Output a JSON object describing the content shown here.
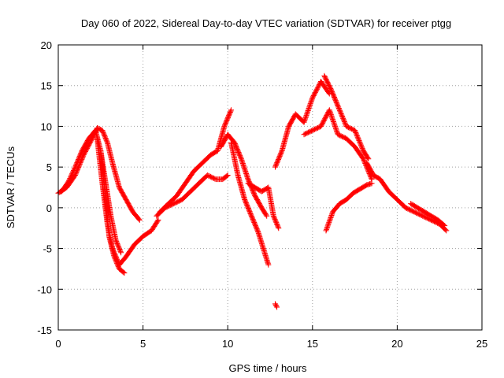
{
  "chart_data": {
    "type": "scatter",
    "title": "Day 060 of 2022, Sidereal Day-to-day VTEC variation (SDTVAR) for receiver ptgg",
    "xlabel": "GPS time / hours",
    "ylabel": "SDTVAR / TECUs",
    "xlim": [
      0,
      25
    ],
    "ylim": [
      -15,
      20
    ],
    "xticks": [
      0,
      5,
      10,
      15,
      20,
      25
    ],
    "yticks": [
      -15,
      -10,
      -5,
      0,
      5,
      10,
      15,
      20
    ],
    "xtick_labels": [
      "0",
      "5",
      "10",
      "15",
      "20",
      "25"
    ],
    "ytick_labels": [
      "-15",
      "-10",
      "-5",
      "0",
      "5",
      "10",
      "15",
      "20"
    ],
    "grid": true,
    "marker": "+",
    "color": "#ff0000",
    "series": [
      {
        "name": "s1",
        "x": [
          0.0,
          0.5,
          1.0,
          1.5,
          2.0,
          2.3,
          2.6,
          2.9,
          3.2,
          3.6,
          4.0,
          4.4,
          4.8
        ],
        "y": [
          1.8,
          2.5,
          4.0,
          6.5,
          8.5,
          9.8,
          9.5,
          8.0,
          5.5,
          2.5,
          1.0,
          -0.5,
          -1.5
        ]
      },
      {
        "name": "s2",
        "x": [
          0.2,
          0.6,
          1.0,
          1.4,
          1.8,
          2.2,
          2.5,
          2.8,
          3.1,
          3.4,
          3.7
        ],
        "y": [
          2.0,
          3.2,
          5.0,
          7.0,
          8.5,
          9.5,
          7.0,
          3.0,
          -1.0,
          -4.0,
          -5.5
        ]
      },
      {
        "name": "s3",
        "x": [
          2.3,
          2.6,
          2.9,
          3.2,
          3.6,
          4.0,
          4.5,
          5.0,
          5.5,
          5.9
        ],
        "y": [
          8.5,
          3.0,
          -2.0,
          -5.0,
          -7.0,
          -6.0,
          -4.5,
          -3.5,
          -2.8,
          -1.5
        ]
      },
      {
        "name": "s4",
        "x": [
          2.5,
          2.8,
          3.0,
          3.3,
          3.6,
          3.9
        ],
        "y": [
          7.0,
          1.0,
          -3.5,
          -6.0,
          -7.5,
          -8.0
        ]
      },
      {
        "name": "s5",
        "x": [
          5.8,
          6.3,
          6.8,
          7.3,
          7.8,
          8.3,
          8.8,
          9.3,
          9.7,
          10.0
        ],
        "y": [
          -1.0,
          0.0,
          0.5,
          1.0,
          2.0,
          3.0,
          4.0,
          3.5,
          3.5,
          4.0
        ]
      },
      {
        "name": "s6",
        "x": [
          6.0,
          6.5,
          7.0,
          7.5,
          8.0,
          8.5,
          9.0,
          9.4,
          9.8,
          10.2
        ],
        "y": [
          -0.5,
          0.5,
          1.5,
          3.0,
          4.5,
          5.5,
          6.5,
          7.0,
          10.0,
          12.0
        ]
      },
      {
        "name": "s7",
        "x": [
          9.6,
          10.0,
          10.4,
          10.8,
          11.2,
          11.6,
          12.0,
          12.3
        ],
        "y": [
          7.5,
          9.0,
          8.0,
          6.0,
          3.5,
          1.5,
          0.0,
          -1.0
        ]
      },
      {
        "name": "s8",
        "x": [
          10.2,
          10.6,
          11.0,
          11.4,
          11.8,
          12.1,
          12.4
        ],
        "y": [
          8.0,
          4.0,
          1.0,
          -1.0,
          -3.0,
          -5.0,
          -7.0
        ]
      },
      {
        "name": "s9",
        "x": [
          11.2,
          11.6,
          12.0,
          12.4,
          12.7,
          13.0
        ],
        "y": [
          3.0,
          2.5,
          2.0,
          2.5,
          -1.0,
          -2.5
        ]
      },
      {
        "name": "s10",
        "x": [
          12.8,
          12.9
        ],
        "y": [
          -11.8,
          -12.2
        ]
      },
      {
        "name": "s11",
        "x": [
          12.8,
          13.2,
          13.6,
          14.0,
          14.5,
          15.0,
          15.5,
          16.0
        ],
        "y": [
          5.0,
          7.0,
          10.0,
          11.5,
          10.5,
          13.5,
          15.5,
          14.0
        ]
      },
      {
        "name": "s12",
        "x": [
          14.5,
          15.0,
          15.5,
          16.0,
          16.5,
          17.0,
          17.5,
          18.0,
          18.5
        ],
        "y": [
          9.0,
          9.5,
          10.0,
          12.0,
          9.0,
          8.5,
          7.5,
          6.0,
          3.5
        ]
      },
      {
        "name": "s13",
        "x": [
          15.7,
          16.1,
          16.5,
          17.0,
          17.5,
          18.0,
          18.3
        ],
        "y": [
          16.2,
          14.5,
          12.5,
          10.0,
          9.5,
          7.0,
          6.0
        ]
      },
      {
        "name": "s14",
        "x": [
          15.8,
          16.2,
          16.6,
          17.0,
          17.4,
          17.8,
          18.2,
          18.5
        ],
        "y": [
          -2.8,
          -0.5,
          0.5,
          1.0,
          1.8,
          2.3,
          2.8,
          3.0
        ]
      },
      {
        "name": "s15",
        "x": [
          18.2,
          18.6,
          19.0,
          19.5,
          20.0,
          20.5,
          21.0,
          21.5,
          22.0,
          22.5,
          22.9
        ],
        "y": [
          5.5,
          4.0,
          3.5,
          2.0,
          1.0,
          0.0,
          -0.5,
          -1.0,
          -1.5,
          -2.0,
          -2.8
        ]
      },
      {
        "name": "s16",
        "x": [
          20.8,
          21.2,
          21.6,
          22.0,
          22.4,
          22.8
        ],
        "y": [
          0.5,
          0.0,
          -0.5,
          -1.0,
          -1.5,
          -2.2
        ]
      }
    ]
  }
}
